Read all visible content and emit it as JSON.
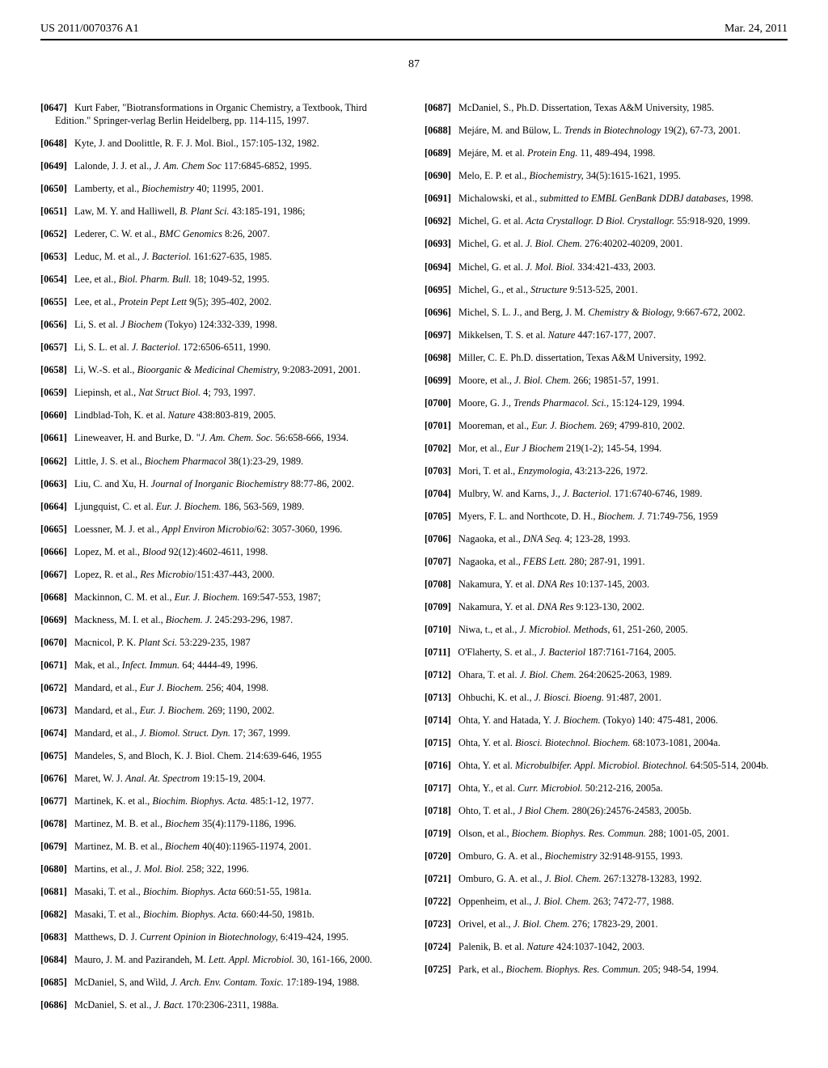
{
  "header": {
    "pub_number": "US 2011/0070376 A1",
    "date": "Mar. 24, 2011"
  },
  "page_number": "87",
  "left_refs": [
    {
      "num": "[0647]",
      "text": "Kurt Faber, \"Biotransformations in Organic Chemistry, a Textbook, Third Edition.\" Springer-verlag Berlin Heidelberg, pp. 114-115, 1997."
    },
    {
      "num": "[0648]",
      "text": "Kyte, J. and Doolittle, R. F. J. Mol. Biol., 157:105-132, 1982."
    },
    {
      "num": "[0649]",
      "text": "Lalonde, J. J. et al., <i>J. Am. Chem Soc</i> 117:6845-6852, 1995."
    },
    {
      "num": "[0650]",
      "text": "Lamberty, et al., <i>Biochemistry</i> 40; 11995, 2001."
    },
    {
      "num": "[0651]",
      "text": "Law, M. Y. and Halliwell, <i>B. Plant Sci.</i> 43:185-191, 1986;"
    },
    {
      "num": "[0652]",
      "text": "Lederer, C. W. et al., <i>BMC Genomics</i> 8:26, 2007."
    },
    {
      "num": "[0653]",
      "text": "Leduc, M. et al., <i>J. Bacteriol.</i> 161:627-635, 1985."
    },
    {
      "num": "[0654]",
      "text": "Lee, et al., <i>Biol. Pharm. Bull.</i> 18; 1049-52, 1995."
    },
    {
      "num": "[0655]",
      "text": "Lee, et al., <i>Protein Pept Lett</i> 9(5); 395-402, 2002."
    },
    {
      "num": "[0656]",
      "text": "Li, S. et al. <i>J Biochem</i> (Tokyo) 124:332-339, 1998."
    },
    {
      "num": "[0657]",
      "text": "Li, S. L. et al. <i>J. Bacteriol.</i> 172:6506-6511, 1990."
    },
    {
      "num": "[0658]",
      "text": "Li, W.-S. et al., <i>Bioorganic & Medicinal Chemistry,</i> 9:2083-2091, 2001."
    },
    {
      "num": "[0659]",
      "text": "Liepinsh, et al., <i>Nat Struct Biol.</i> 4; 793, 1997."
    },
    {
      "num": "[0660]",
      "text": "Lindblad-Toh, K. et al. <i>Nature</i> 438:803-819, 2005."
    },
    {
      "num": "[0661]",
      "text": "Lineweaver, H. and Burke, D. \"<i>J. Am. Chem. Soc.</i> 56:658-666, 1934."
    },
    {
      "num": "[0662]",
      "text": "Little, J. S. et al., <i>Biochem Pharmacol</i> 38(1):23-29, 1989."
    },
    {
      "num": "[0663]",
      "text": "Liu, C. and Xu, H. <i>Journal of Inorganic Biochemistry</i> 88:77-86, 2002."
    },
    {
      "num": "[0664]",
      "text": "Ljungquist, C. et al. <i>Eur. J. Biochem.</i> 186, 563-569, 1989."
    },
    {
      "num": "[0665]",
      "text": "Loessner, M. J. et al., <i>Appl Environ Microbio</i>/62: 3057-3060, 1996."
    },
    {
      "num": "[0666]",
      "text": "Lopez, M. et al., <i>Blood</i> 92(12):4602-4611, 1998."
    },
    {
      "num": "[0667]",
      "text": "Lopez, R. et al., <i>Res Microbio</i>/151:437-443, 2000."
    },
    {
      "num": "[0668]",
      "text": "Mackinnon, C. M. et al., <i>Eur. J. Biochem.</i> 169:547-553, 1987;"
    },
    {
      "num": "[0669]",
      "text": "Mackness, M. I. et al., <i>Biochem. J.</i> 245:293-296, 1987."
    },
    {
      "num": "[0670]",
      "text": "Macnicol, P. K. <i>Plant Sci.</i> 53:229-235, 1987"
    },
    {
      "num": "[0671]",
      "text": "Mak, et al., <i>Infect. Immun.</i> 64; 4444-49, 1996."
    },
    {
      "num": "[0672]",
      "text": "Mandard, et al., <i>Eur J. Biochem.</i> 256; 404, 1998."
    },
    {
      "num": "[0673]",
      "text": "Mandard, et al., <i>Eur. J. Biochem.</i> 269; 1190, 2002."
    },
    {
      "num": "[0674]",
      "text": "Mandard, et al., <i>J. Biomol. Struct. Dyn.</i> 17; 367, 1999."
    },
    {
      "num": "[0675]",
      "text": "Mandeles, S, and Bloch, K. J. Biol. Chem. 214:639-646, 1955"
    },
    {
      "num": "[0676]",
      "text": "Maret, W. J. <i>Anal. At. Spectrom</i> 19:15-19, 2004."
    },
    {
      "num": "[0677]",
      "text": "Martinek, K. et al., <i>Biochim. Biophys. Acta.</i> 485:1-12, 1977."
    },
    {
      "num": "[0678]",
      "text": "Martinez, M. B. et al., <i>Biochem</i> 35(4):1179-1186, 1996."
    },
    {
      "num": "[0679]",
      "text": "Martinez, M. B. et al., <i>Biochem</i> 40(40):11965-11974, 2001."
    },
    {
      "num": "[0680]",
      "text": "Martins, et al., <i>J. Mol. Biol.</i> 258; 322, 1996."
    },
    {
      "num": "[0681]",
      "text": "Masaki, T. et al., <i>Biochim. Biophys. Acta</i> 660:51-55, 1981a."
    },
    {
      "num": "[0682]",
      "text": "Masaki, T. et al., <i>Biochim. Biophys. Acta.</i> 660:44-50, 1981b."
    },
    {
      "num": "[0683]",
      "text": "Matthews, D. J. <i>Current Opinion in Biotechnology,</i> 6:419-424, 1995."
    },
    {
      "num": "[0684]",
      "text": "Mauro, J. M. and Pazirandeh, M. <i>Lett. Appl. Microbiol.</i> 30, 161-166, 2000."
    },
    {
      "num": "[0685]",
      "text": "McDaniel, S, and Wild, <i>J. Arch. Env. Contam. Toxic.</i> 17:189-194, 1988."
    },
    {
      "num": "[0686]",
      "text": "McDaniel, S. et al., <i>J. Bact.</i> 170:2306-2311, 1988a."
    }
  ],
  "right_refs": [
    {
      "num": "[0687]",
      "text": "McDaniel, S., Ph.D. Dissertation, Texas A&M University, 1985."
    },
    {
      "num": "[0688]",
      "text": "Mejáre, M. and Bülow, L. <i>Trends in Biotechnology</i> 19(2), 67-73, 2001."
    },
    {
      "num": "[0689]",
      "text": "Mejáre, M. et al. <i>Protein Eng.</i> 11, 489-494, 1998."
    },
    {
      "num": "[0690]",
      "text": "Melo, E. P. et al., <i>Biochemistry,</i> 34(5):1615-1621, 1995."
    },
    {
      "num": "[0691]",
      "text": "Michalowski, et al., <i>submitted to EMBL GenBank DDBJ databases,</i> 1998."
    },
    {
      "num": "[0692]",
      "text": "Michel, G. et al. <i>Acta Crystallogr. D Biol. Crystallogr.</i> 55:918-920, 1999."
    },
    {
      "num": "[0693]",
      "text": "Michel, G. et al. <i>J. Biol. Chem.</i> 276:40202-40209, 2001."
    },
    {
      "num": "[0694]",
      "text": "Michel, G. et al. <i>J. Mol. Biol.</i> 334:421-433, 2003."
    },
    {
      "num": "[0695]",
      "text": "Michel, G., et al., <i>Structure</i> 9:513-525, 2001."
    },
    {
      "num": "[0696]",
      "text": "Michel, S. L. J., and Berg, J. M. <i>Chemistry & Biology,</i> 9:667-672, 2002."
    },
    {
      "num": "[0697]",
      "text": "Mikkelsen, T. S. et al. <i>Nature</i> 447:167-177, 2007."
    },
    {
      "num": "[0698]",
      "text": "Miller, C. E. Ph.D. dissertation, Texas A&M University, 1992."
    },
    {
      "num": "[0699]",
      "text": "Moore, et al., <i>J. Biol. Chem.</i> 266; 19851-57, 1991."
    },
    {
      "num": "[0700]",
      "text": "Moore, G. J., <i>Trends Pharmacol. Sci.,</i> 15:124-129, 1994."
    },
    {
      "num": "[0701]",
      "text": "Mooreman, et al., <i>Eur. J. Biochem.</i> 269; 4799-810, 2002."
    },
    {
      "num": "[0702]",
      "text": "Mor, et al., <i>Eur J Biochem</i> 219(1-2); 145-54, 1994."
    },
    {
      "num": "[0703]",
      "text": "Mori, T. et al., <i>Enzymologia,</i> 43:213-226, 1972."
    },
    {
      "num": "[0704]",
      "text": "Mulbry, W. and Karns, J., <i>J. Bacteriol.</i> 171:6740-6746, 1989."
    },
    {
      "num": "[0705]",
      "text": "Myers, F. L. and Northcote, D. H., <i>Biochem. J.</i> 71:749-756, 1959"
    },
    {
      "num": "[0706]",
      "text": "Nagaoka, et al., <i>DNA Seq.</i> 4; 123-28, 1993."
    },
    {
      "num": "[0707]",
      "text": "Nagaoka, et al., <i>FEBS Lett.</i> 280; 287-91, 1991."
    },
    {
      "num": "[0708]",
      "text": "Nakamura, Y. et al. <i>DNA Res</i> 10:137-145, 2003."
    },
    {
      "num": "[0709]",
      "text": "Nakamura, Y. et al. <i>DNA Res</i> 9:123-130, 2002."
    },
    {
      "num": "[0710]",
      "text": "Niwa, t., et al., <i>J. Microbiol. Methods,</i> 61, 251-260, 2005."
    },
    {
      "num": "[0711]",
      "text": "O'Flaherty, S. et al., <i>J. Bacteriol</i> 187:7161-7164, 2005."
    },
    {
      "num": "[0712]",
      "text": "Ohara, T. et al. <i>J. Biol. Chem.</i> 264:20625-2063, 1989."
    },
    {
      "num": "[0713]",
      "text": "Ohbuchi, K. et al., <i>J. Biosci. Bioeng.</i> 91:487, 2001."
    },
    {
      "num": "[0714]",
      "text": "Ohta, Y. and Hatada, Y. <i>J. Biochem.</i> (Tokyo) 140: 475-481, 2006."
    },
    {
      "num": "[0715]",
      "text": "Ohta, Y. et al. <i>Biosci. Biotechnol. Biochem.</i> 68:1073-1081, 2004a."
    },
    {
      "num": "[0716]",
      "text": "Ohta, Y. et al. <i>Microbulbifer. Appl. Microbiol. Biotechnol.</i> 64:505-514, 2004b."
    },
    {
      "num": "[0717]",
      "text": "Ohta, Y., et al. <i>Curr. Microbiol.</i> 50:212-216, 2005a."
    },
    {
      "num": "[0718]",
      "text": "Ohto, T. et al., <i>J Biol Chem.</i> 280(26):24576-24583, 2005b."
    },
    {
      "num": "[0719]",
      "text": "Olson, et al., <i>Biochem. Biophys. Res. Commun.</i> 288; 1001-05, 2001."
    },
    {
      "num": "[0720]",
      "text": "Omburo, G. A. et al., <i>Biochemistry</i> 32:9148-9155, 1993."
    },
    {
      "num": "[0721]",
      "text": "Omburo, G. A. et al., <i>J. Biol. Chem.</i> 267:13278-13283, 1992."
    },
    {
      "num": "[0722]",
      "text": "Oppenheim, et al., <i>J. Biol. Chem.</i> 263; 7472-77, 1988."
    },
    {
      "num": "[0723]",
      "text": "Orivel, et al., <i>J. Biol. Chem.</i> 276; 17823-29, 2001."
    },
    {
      "num": "[0724]",
      "text": "Palenik, B. et al. <i>Nature</i> 424:1037-1042, 2003."
    },
    {
      "num": "[0725]",
      "text": "Park, et al., <i>Biochem. Biophys. Res. Commun.</i> 205; 948-54, 1994."
    }
  ]
}
